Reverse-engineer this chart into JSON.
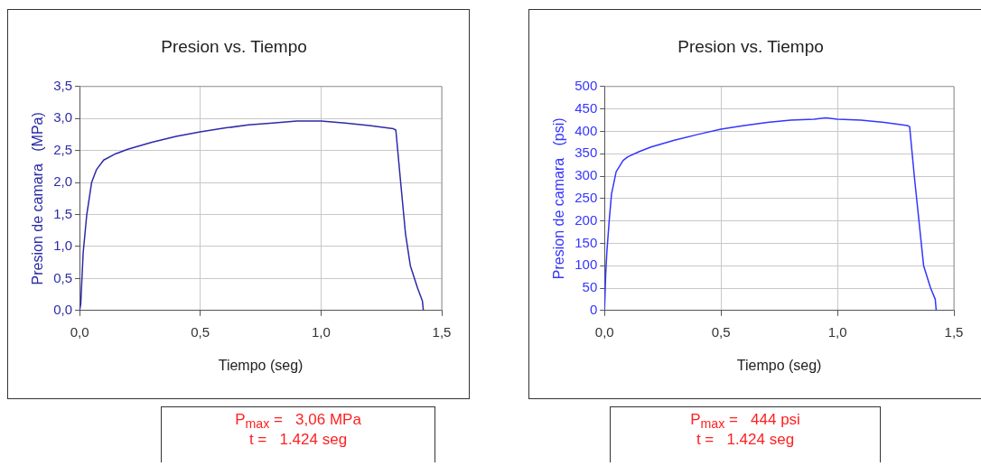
{
  "chart_data": [
    {
      "type": "line",
      "title": "Presion vs. Tiempo",
      "xlabel": "Tiempo (seg)",
      "ylabel": "Presion de camara   (MPa)",
      "series": [
        {
          "color": "#2b2ba8",
          "x": [
            0,
            0.005,
            0.01,
            0.015,
            0.03,
            0.05,
            0.07,
            0.1,
            0.15,
            0.2,
            0.3,
            0.4,
            0.5,
            0.6,
            0.7,
            0.8,
            0.9,
            1.0,
            1.1,
            1.2,
            1.3,
            1.31,
            1.33,
            1.35,
            1.37,
            1.4,
            1.42,
            1.424
          ],
          "values": [
            0,
            0.1,
            0.5,
            0.9,
            1.5,
            2.0,
            2.2,
            2.35,
            2.45,
            2.52,
            2.63,
            2.72,
            2.79,
            2.85,
            2.9,
            2.93,
            2.96,
            2.96,
            2.93,
            2.89,
            2.84,
            2.82,
            2.0,
            1.2,
            0.7,
            0.35,
            0.15,
            0.0
          ]
        }
      ],
      "xlim": [
        0,
        1.5
      ],
      "xticks": [
        {
          "value": 0,
          "label": "0,0"
        },
        {
          "value": 0.5,
          "label": "0,5"
        },
        {
          "value": 1,
          "label": "1,0"
        },
        {
          "value": 1.5,
          "label": "1,5"
        }
      ],
      "ylim": [
        0,
        3.5
      ],
      "yticks": [
        {
          "value": 0,
          "label": "0,0"
        },
        {
          "value": 0.5,
          "label": "0,5"
        },
        {
          "value": 1,
          "label": "1,0"
        },
        {
          "value": 1.5,
          "label": "1,5"
        },
        {
          "value": 2,
          "label": "2,0"
        },
        {
          "value": 2.5,
          "label": "2,5"
        },
        {
          "value": 3,
          "label": "3,0"
        },
        {
          "value": 3.5,
          "label": "3,5"
        }
      ],
      "grid": true,
      "legend": false,
      "marker": "none",
      "line_style": "solid",
      "annotations": [
        "P$_{max}$ =   3,06 MPa",
        "t =   1.424 seg"
      ]
    },
    {
      "type": "line",
      "title": "Presion vs. Tiempo",
      "xlabel": "Tiempo (seg)",
      "ylabel": "Presion de camara   (psi)",
      "series": [
        {
          "color": "#3535ff",
          "x": [
            0,
            0.005,
            0.01,
            0.02,
            0.03,
            0.05,
            0.08,
            0.1,
            0.15,
            0.2,
            0.3,
            0.4,
            0.5,
            0.6,
            0.7,
            0.8,
            0.9,
            0.95,
            1.0,
            1.1,
            1.2,
            1.3,
            1.31,
            1.33,
            1.35,
            1.37,
            1.4,
            1.42,
            1.424
          ],
          "values": [
            0,
            80,
            130,
            200,
            260,
            310,
            335,
            343,
            355,
            365,
            380,
            393,
            405,
            413,
            420,
            425,
            427,
            430,
            427,
            425,
            420,
            413,
            410,
            300,
            200,
            100,
            50,
            25,
            0
          ]
        }
      ],
      "xlim": [
        0,
        1.5
      ],
      "xticks": [
        {
          "value": 0,
          "label": "0,0"
        },
        {
          "value": 0.5,
          "label": "0,5"
        },
        {
          "value": 1,
          "label": "1,0"
        },
        {
          "value": 1.5,
          "label": "1,5"
        }
      ],
      "ylim": [
        0,
        500
      ],
      "yticks": [
        0,
        50,
        100,
        150,
        200,
        250,
        300,
        350,
        400,
        450,
        500
      ],
      "grid": true,
      "legend": false,
      "marker": "none",
      "line_style": "solid",
      "annotations": [
        "P$_{max}$ =   444 psi",
        "t =   1.424 seg"
      ]
    }
  ]
}
